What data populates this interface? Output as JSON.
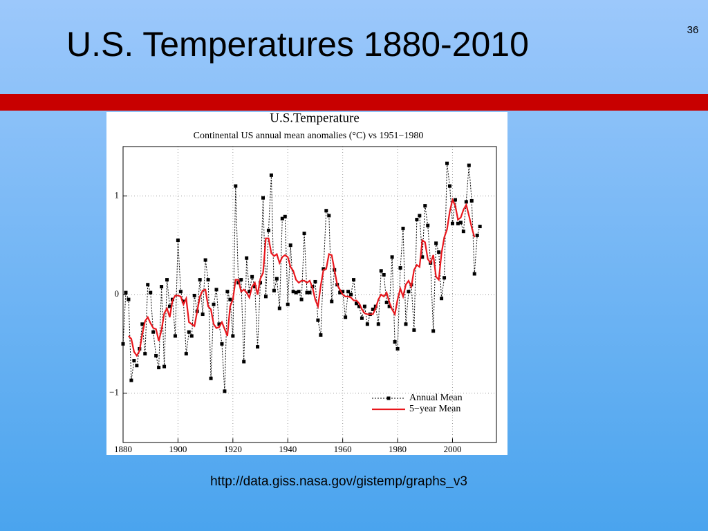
{
  "slide": {
    "title": "U.S. Temperatures 1880-2010",
    "page_number": "36",
    "source": "http://data.giss.nasa.gov/gistemp/graphs_v3"
  },
  "chart_data": {
    "type": "line",
    "title": "U.S.Temperature",
    "subtitle": "Continental US annual mean anomalies (°C) vs 1951−1980",
    "x": [
      1880,
      1881,
      1882,
      1883,
      1884,
      1885,
      1886,
      1887,
      1888,
      1889,
      1890,
      1891,
      1892,
      1893,
      1894,
      1895,
      1896,
      1897,
      1898,
      1899,
      1900,
      1901,
      1902,
      1903,
      1904,
      1905,
      1906,
      1907,
      1908,
      1909,
      1910,
      1911,
      1912,
      1913,
      1914,
      1915,
      1916,
      1917,
      1918,
      1919,
      1920,
      1921,
      1922,
      1923,
      1924,
      1925,
      1926,
      1927,
      1928,
      1929,
      1930,
      1931,
      1932,
      1933,
      1934,
      1935,
      1936,
      1937,
      1938,
      1939,
      1940,
      1941,
      1942,
      1943,
      1944,
      1945,
      1946,
      1947,
      1948,
      1949,
      1950,
      1951,
      1952,
      1953,
      1954,
      1955,
      1956,
      1957,
      1958,
      1959,
      1960,
      1961,
      1962,
      1963,
      1964,
      1965,
      1966,
      1967,
      1968,
      1969,
      1970,
      1971,
      1972,
      1973,
      1974,
      1975,
      1976,
      1977,
      1978,
      1979,
      1980,
      1981,
      1982,
      1983,
      1984,
      1985,
      1986,
      1987,
      1988,
      1989,
      1990,
      1991,
      1992,
      1993,
      1994,
      1995,
      1996,
      1997,
      1998,
      1999,
      2000,
      2001,
      2002,
      2003,
      2004,
      2005,
      2006,
      2007,
      2008,
      2009,
      2010
    ],
    "series": [
      {
        "name": "Annual Mean",
        "color": "#000000",
        "dashed": true,
        "markers": true,
        "values": [
          -0.5,
          0.02,
          -0.05,
          -0.87,
          -0.67,
          -0.72,
          -0.55,
          -0.3,
          -0.6,
          0.1,
          0.02,
          -0.38,
          -0.62,
          -0.74,
          0.08,
          -0.73,
          0.15,
          -0.12,
          -0.05,
          -0.42,
          0.55,
          0.03,
          -0.07,
          -0.6,
          -0.38,
          -0.42,
          -0.01,
          -0.17,
          0.15,
          -0.2,
          0.35,
          0.15,
          -0.85,
          -0.1,
          0.05,
          -0.3,
          -0.5,
          -0.98,
          0.03,
          -0.05,
          -0.42,
          1.1,
          0.12,
          0.15,
          -0.68,
          0.37,
          0.03,
          0.18,
          0.08,
          -0.53,
          0.12,
          0.98,
          -0.02,
          0.65,
          1.21,
          0.04,
          0.16,
          -0.14,
          0.77,
          0.79,
          -0.1,
          0.5,
          0.03,
          0.02,
          0.03,
          -0.05,
          0.62,
          0.02,
          0.02,
          0.08,
          0.13,
          -0.26,
          -0.41,
          0.26,
          0.85,
          0.8,
          -0.07,
          0.25,
          0.1,
          0.02,
          0.03,
          -0.23,
          0.03,
          0,
          0.15,
          -0.09,
          -0.12,
          -0.24,
          -0.12,
          -0.3,
          -0.2,
          -0.15,
          -0.12,
          -0.3,
          0.24,
          0.2,
          -0.08,
          -0.12,
          0.38,
          -0.48,
          -0.55,
          0.27,
          0.67,
          -0.3,
          0.03,
          0.1,
          -0.36,
          0.76,
          0.8,
          0.38,
          0.9,
          0.7,
          0.32,
          -0.37,
          0.52,
          0.43,
          -0.04,
          0.17,
          1.33,
          1.1,
          0.72,
          0.96,
          0.72,
          0.73,
          0.64,
          0.94,
          1.31,
          0.95,
          0.21,
          0.6,
          0.69
        ]
      },
      {
        "name": "5−year Mean",
        "color": "#e8161c",
        "dashed": false,
        "markers": false,
        "values": [
          null,
          null,
          -0.42,
          -0.45,
          -0.58,
          -0.62,
          -0.57,
          -0.4,
          -0.27,
          -0.23,
          -0.29,
          -0.34,
          -0.35,
          -0.47,
          -0.36,
          -0.19,
          -0.14,
          -0.23,
          -0.06,
          -0.01,
          -0.01,
          -0.02,
          -0.1,
          -0.04,
          -0.28,
          -0.3,
          -0.32,
          -0.17,
          -0.02,
          0.04,
          0.05,
          -0.12,
          -0.15,
          -0.3,
          -0.34,
          -0.33,
          -0.28,
          -0.35,
          -0.42,
          -0.12,
          -0.05,
          0.15,
          0.15,
          0.03,
          0.05,
          0.02,
          -0.03,
          0.08,
          0.12,
          0,
          0.16,
          0.22,
          0.57,
          0.57,
          0.42,
          0.39,
          0.41,
          0.32,
          0.38,
          0.4,
          0.38,
          0.28,
          0.24,
          0.15,
          0.12,
          0.14,
          0.14,
          0.12,
          0.14,
          0.07,
          -0.05,
          -0.12,
          0.09,
          0.25,
          0.26,
          0.41,
          0.4,
          0.25,
          0.1,
          0.05,
          0,
          -0.02,
          -0.02,
          -0.03,
          -0.06,
          -0.06,
          -0.09,
          -0.15,
          -0.19,
          -0.2,
          -0.2,
          -0.2,
          -0.14,
          -0.05,
          0,
          -0.02,
          0.02,
          -0.08,
          -0.15,
          -0.2,
          -0.05,
          0.06,
          -0.02,
          0.1,
          0.14,
          0.08,
          0.25,
          0.3,
          0.28,
          0.55,
          0.53,
          0.36,
          0.32,
          0.4,
          0.18,
          0.15,
          0.42,
          0.58,
          0.66,
          0.84,
          0.96,
          0.9,
          0.76,
          0.78,
          0.86,
          0.91,
          0.8,
          0.68,
          0.58,
          null,
          null
        ]
      }
    ],
    "xlim": [
      1880,
      2016
    ],
    "xticks": [
      1880,
      1900,
      1920,
      1940,
      1960,
      1980,
      2000
    ],
    "ylim": [
      -1.5,
      1.5
    ],
    "yticks": [
      {
        "value": -1,
        "label": "−1"
      },
      0,
      1
    ],
    "grid": true,
    "legend": "lower right"
  }
}
